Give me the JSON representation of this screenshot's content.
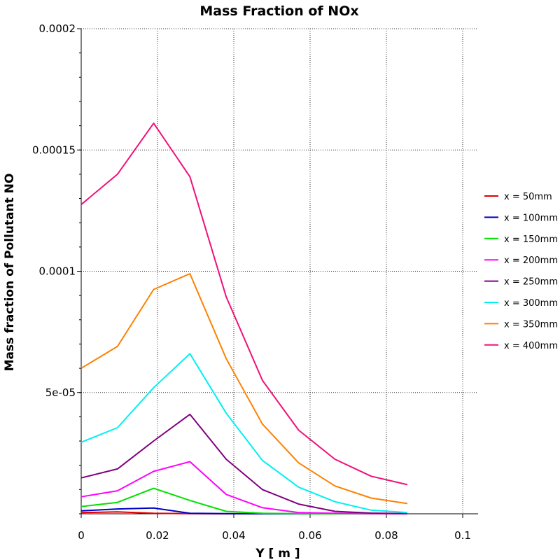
{
  "chart_data": {
    "type": "line",
    "title": "Mass Fraction of NOx",
    "xlabel": "Y [ m ]",
    "ylabel": "Mass fraction of Pollutant NO",
    "xlim": [
      0,
      0.1
    ],
    "ylim": [
      0,
      0.0002
    ],
    "x_ticks": [
      "0",
      "0.02",
      "0.04",
      "0.06",
      "0.08",
      "0.1"
    ],
    "y_ticks": [
      "0.0002",
      "0.00015",
      "0.0001",
      "5e-05"
    ],
    "grid": true,
    "legend_position": "right",
    "x": [
      0,
      0.0095,
      0.019,
      0.0285,
      0.038,
      0.0475,
      0.057,
      0.0665,
      0.076,
      0.0855
    ],
    "series": [
      {
        "name": "x = 50mm",
        "color": "#e00000",
        "values": [
          5e-07,
          8e-07,
          2e-07,
          1e-07,
          0,
          0,
          0,
          0,
          0,
          0
        ]
      },
      {
        "name": "x = 100mm",
        "color": "#0000c8",
        "values": [
          1.2e-06,
          2e-06,
          2.4e-06,
          2e-07,
          1e-07,
          0,
          0,
          0,
          0,
          0
        ]
      },
      {
        "name": "x = 150mm",
        "color": "#00e000",
        "values": [
          3e-06,
          4.7e-06,
          1.05e-05,
          5.5e-06,
          1e-06,
          2e-07,
          1e-07,
          0,
          0,
          0
        ]
      },
      {
        "name": "x = 200mm",
        "color": "#ff00ff",
        "values": [
          7e-06,
          9.5e-06,
          1.75e-05,
          2.15e-05,
          8e-06,
          2.5e-06,
          5e-07,
          2e-07,
          1e-07,
          0
        ]
      },
      {
        "name": "x = 250mm",
        "color": "#800080",
        "values": [
          1.48e-05,
          1.85e-05,
          3e-05,
          4.1e-05,
          2.25e-05,
          1e-05,
          4e-06,
          1e-06,
          3e-07,
          1e-07
        ]
      },
      {
        "name": "x = 300mm",
        "color": "#00f0f0",
        "values": [
          2.95e-05,
          3.55e-05,
          5.2e-05,
          6.6e-05,
          4.15e-05,
          2.2e-05,
          1.1e-05,
          5e-06,
          1.5e-06,
          5e-07
        ]
      },
      {
        "name": "x = 350mm",
        "color": "#ff8000",
        "values": [
          6e-05,
          6.9e-05,
          9.25e-05,
          9.9e-05,
          6.4e-05,
          3.7e-05,
          2.1e-05,
          1.15e-05,
          6.5e-06,
          4.2e-06
        ]
      },
      {
        "name": "x = 400mm",
        "color": "#f0107a",
        "values": [
          0.0001275,
          0.00014,
          0.000161,
          0.000139,
          8.95e-05,
          5.5e-05,
          3.45e-05,
          2.25e-05,
          1.55e-05,
          1.2e-05
        ]
      }
    ]
  }
}
